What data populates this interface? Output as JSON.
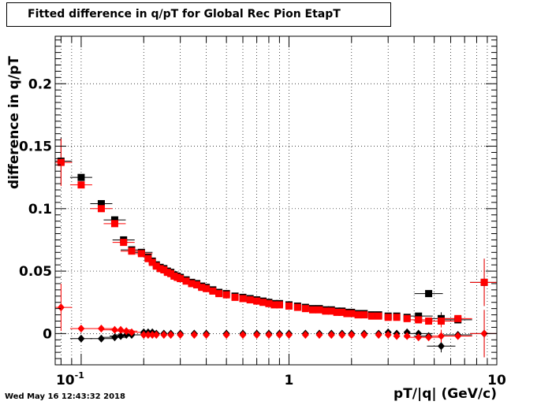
{
  "chart_data": {
    "type": "scatter",
    "title": "Fitted difference in q/pT for Global Rec Pion EtapT",
    "xlabel": "pT/|q| (GeV/c)",
    "ylabel": "difference in q/pT",
    "xscale": "log",
    "xlim": [
      0.075,
      10
    ],
    "ylim": [
      -0.025,
      0.238
    ],
    "grid": true,
    "x_tick_labels": [
      "10^-1",
      "1",
      "10"
    ],
    "y_tick_labels": [
      "0",
      "0.05",
      "0.1",
      "0.15",
      "0.2"
    ],
    "series": [
      {
        "marker": "square",
        "color": "#000000",
        "x": [
          0.08,
          0.1,
          0.125,
          0.145,
          0.16,
          0.175,
          0.195,
          0.21,
          0.22,
          0.23,
          0.24,
          0.25,
          0.26,
          0.27,
          0.28,
          0.29,
          0.3,
          0.32,
          0.34,
          0.36,
          0.38,
          0.4,
          0.43,
          0.46,
          0.5,
          0.55,
          0.6,
          0.65,
          0.7,
          0.75,
          0.8,
          0.85,
          0.9,
          1.0,
          1.1,
          1.2,
          1.3,
          1.4,
          1.5,
          1.6,
          1.7,
          1.8,
          1.9,
          2.0,
          2.15,
          2.3,
          2.5,
          2.7,
          3.0,
          3.3,
          3.7,
          4.2,
          4.7,
          5.4,
          6.5,
          8.7
        ],
        "y": [
          0.138,
          0.125,
          0.104,
          0.091,
          0.075,
          0.067,
          0.065,
          0.061,
          0.058,
          0.055,
          0.053,
          0.052,
          0.05,
          0.049,
          0.047,
          0.046,
          0.045,
          0.043,
          0.041,
          0.04,
          0.038,
          0.037,
          0.035,
          0.033,
          0.032,
          0.03,
          0.029,
          0.028,
          0.027,
          0.026,
          0.025,
          0.024,
          0.024,
          0.023,
          0.022,
          0.021,
          0.02,
          0.02,
          0.019,
          0.019,
          0.018,
          0.018,
          0.017,
          0.017,
          0.016,
          0.016,
          0.015,
          0.015,
          0.014,
          0.014,
          0.013,
          0.014,
          0.032,
          0.012,
          0.011,
          0.041
        ]
      },
      {
        "marker": "square",
        "color": "#ff0000",
        "x": [
          0.08,
          0.1,
          0.125,
          0.145,
          0.16,
          0.175,
          0.195,
          0.21,
          0.22,
          0.23,
          0.24,
          0.25,
          0.26,
          0.27,
          0.28,
          0.29,
          0.3,
          0.32,
          0.34,
          0.36,
          0.38,
          0.4,
          0.43,
          0.46,
          0.5,
          0.55,
          0.6,
          0.65,
          0.7,
          0.75,
          0.8,
          0.85,
          0.9,
          1.0,
          1.1,
          1.2,
          1.3,
          1.4,
          1.5,
          1.6,
          1.7,
          1.8,
          1.9,
          2.0,
          2.15,
          2.3,
          2.5,
          2.7,
          3.0,
          3.3,
          3.7,
          4.2,
          4.7,
          5.4,
          6.5,
          8.7
        ],
        "y": [
          0.137,
          0.119,
          0.1,
          0.088,
          0.073,
          0.066,
          0.064,
          0.06,
          0.057,
          0.054,
          0.052,
          0.051,
          0.049,
          0.048,
          0.046,
          0.045,
          0.044,
          0.042,
          0.04,
          0.039,
          0.037,
          0.036,
          0.034,
          0.032,
          0.031,
          0.029,
          0.028,
          0.027,
          0.026,
          0.025,
          0.024,
          0.023,
          0.023,
          0.022,
          0.021,
          0.02,
          0.019,
          0.019,
          0.018,
          0.018,
          0.017,
          0.017,
          0.016,
          0.016,
          0.015,
          0.015,
          0.014,
          0.014,
          0.013,
          0.013,
          0.012,
          0.011,
          0.01,
          0.01,
          0.012,
          0.041
        ]
      },
      {
        "marker": "diamond",
        "color": "#000000",
        "x": [
          0.1,
          0.125,
          0.145,
          0.155,
          0.165,
          0.175,
          0.2,
          0.21,
          0.22,
          0.23,
          0.25,
          0.27,
          0.3,
          0.35,
          0.4,
          0.5,
          0.6,
          0.7,
          0.8,
          0.9,
          1.0,
          1.2,
          1.4,
          1.6,
          1.8,
          2.0,
          2.3,
          2.7,
          3.0,
          3.3,
          3.7,
          4.2,
          4.7,
          5.4,
          6.5,
          8.7
        ],
        "y": [
          -0.004,
          -0.004,
          -0.003,
          -0.002,
          -0.001,
          -0.001,
          0.001,
          0.001,
          0.001,
          0.0,
          0.0,
          0.0,
          0.0,
          0.0,
          0.0,
          0.0,
          0.0,
          0.0,
          0.0,
          0.0,
          0.0,
          0.0,
          0.0,
          0.0,
          0.0,
          0.0,
          0.0,
          0.0,
          0.001,
          0.0,
          0.001,
          0.0,
          -0.002,
          -0.01,
          -0.001,
          0.0
        ]
      },
      {
        "marker": "diamond",
        "color": "#ff0000",
        "x": [
          0.08,
          0.1,
          0.125,
          0.145,
          0.155,
          0.165,
          0.175,
          0.2,
          0.21,
          0.22,
          0.23,
          0.25,
          0.27,
          0.3,
          0.35,
          0.4,
          0.5,
          0.6,
          0.7,
          0.8,
          0.9,
          1.0,
          1.2,
          1.4,
          1.6,
          1.8,
          2.0,
          2.3,
          2.7,
          3.0,
          3.3,
          3.7,
          4.2,
          4.7,
          5.4,
          6.5,
          8.7
        ],
        "y": [
          0.021,
          0.004,
          0.004,
          0.003,
          0.003,
          0.002,
          0.001,
          -0.001,
          -0.001,
          -0.001,
          -0.001,
          -0.001,
          -0.001,
          -0.001,
          -0.001,
          -0.001,
          -0.001,
          -0.001,
          -0.001,
          -0.001,
          -0.001,
          -0.001,
          -0.001,
          -0.001,
          -0.001,
          -0.001,
          -0.001,
          -0.001,
          -0.001,
          -0.001,
          -0.002,
          -0.002,
          -0.003,
          -0.003,
          -0.002,
          -0.002,
          0.0
        ]
      }
    ]
  },
  "footer": {
    "date": "Wed May 16 12:43:32 2018"
  }
}
